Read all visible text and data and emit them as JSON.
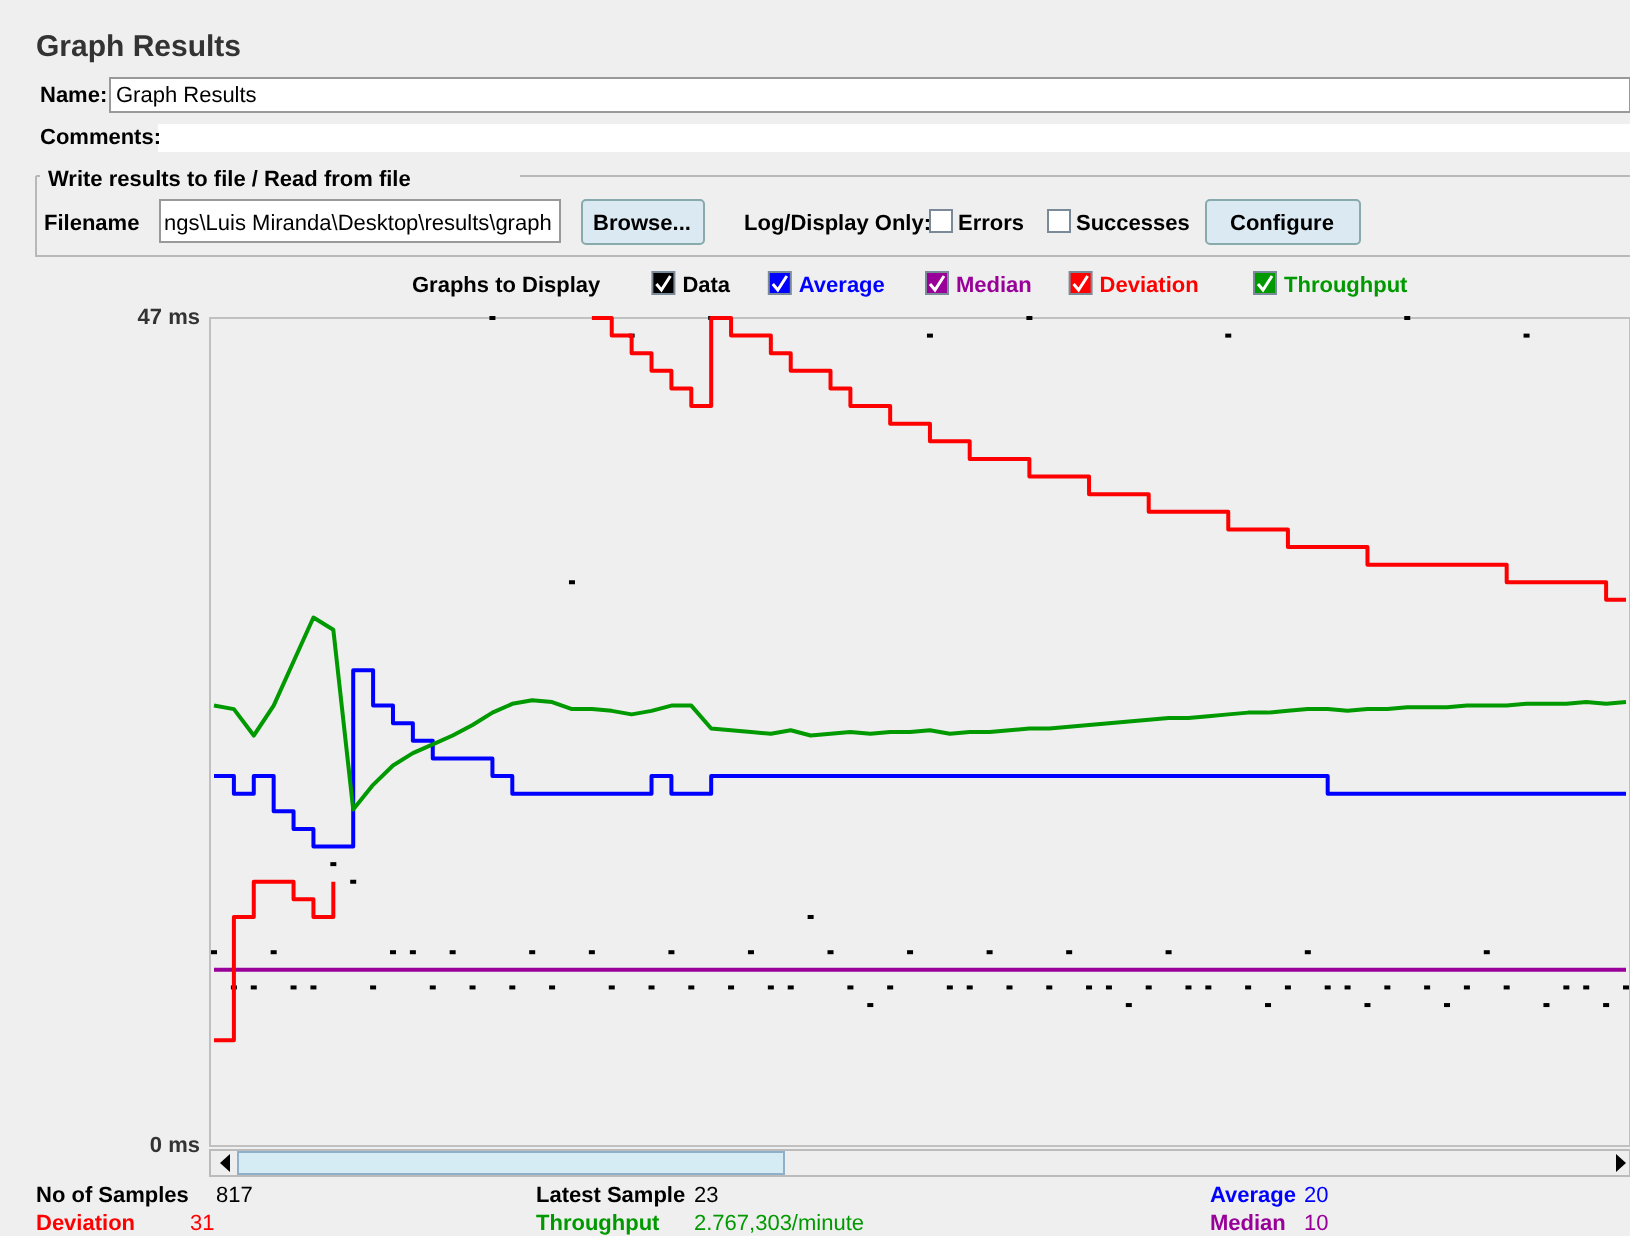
{
  "chart_data": {
    "type": "line",
    "title": "Graph Results",
    "legend_title": "Graphs to Display",
    "legend": "top",
    "tick_labels": "y",
    "grid": false,
    "ylim": [
      0,
      47
    ],
    "yticks": [
      {
        "value": 47,
        "label": "47 ms"
      },
      {
        "value": 0,
        "label": "0 ms"
      }
    ],
    "categories": [
      null,
      null,
      null,
      null,
      null,
      null,
      null,
      null,
      null,
      null,
      null,
      null,
      null,
      null,
      null,
      null,
      null,
      null,
      null,
      null,
      null,
      null,
      null,
      null,
      null,
      null,
      null,
      null,
      null,
      null,
      null,
      null,
      null,
      null,
      null,
      null,
      null,
      null,
      null,
      null,
      null,
      null,
      null,
      null,
      null,
      null,
      null,
      null,
      null,
      null,
      null,
      null,
      null,
      null,
      null,
      null,
      null,
      null,
      null,
      null,
      null,
      null,
      null,
      null,
      null,
      null,
      null,
      null,
      null,
      null,
      null,
      null
    ],
    "series": [
      {
        "name": "Data",
        "type": "scatter",
        "color": "#000000",
        "values": [
          11,
          9,
          9,
          11,
          9,
          9,
          16,
          15,
          9,
          11,
          11,
          9,
          11,
          9,
          47,
          9,
          11,
          9,
          32,
          11,
          9,
          46,
          9,
          11,
          9,
          47,
          9,
          11,
          9,
          9,
          13,
          11,
          9,
          8,
          9,
          11,
          46,
          9,
          9,
          11,
          9,
          47,
          9,
          11,
          9,
          9,
          8,
          9,
          11,
          9,
          9,
          46,
          9,
          8,
          9,
          11,
          9,
          9,
          8,
          9,
          47,
          9,
          8,
          9,
          11,
          9,
          46,
          8,
          9,
          9,
          8,
          9
        ]
      },
      {
        "name": "Average",
        "type": "step",
        "color": "#0000ff",
        "values": [
          21,
          20,
          21,
          19,
          18,
          17,
          17,
          27,
          25,
          24,
          23,
          22,
          22,
          22,
          21,
          20,
          20,
          20,
          20,
          20,
          20,
          20,
          21,
          20,
          20,
          21,
          21,
          21,
          21,
          21,
          21,
          21,
          21,
          21,
          21,
          21,
          21,
          21,
          21,
          21,
          21,
          21,
          21,
          21,
          21,
          21,
          21,
          21,
          21,
          21,
          21,
          21,
          21,
          21,
          21,
          21,
          20,
          20,
          20,
          20,
          20,
          20,
          20,
          20,
          20,
          20,
          20,
          20,
          20,
          20,
          20,
          20
        ]
      },
      {
        "name": "Median",
        "type": "step",
        "color": "#990099",
        "values": [
          10,
          10,
          10,
          10,
          10,
          10,
          10,
          10,
          10,
          10,
          10,
          10,
          10,
          10,
          10,
          10,
          10,
          10,
          10,
          10,
          10,
          10,
          10,
          10,
          10,
          10,
          10,
          10,
          10,
          10,
          10,
          10,
          10,
          10,
          10,
          10,
          10,
          10,
          10,
          10,
          10,
          10,
          10,
          10,
          10,
          10,
          10,
          10,
          10,
          10,
          10,
          10,
          10,
          10,
          10,
          10,
          10,
          10,
          10,
          10,
          10,
          10,
          10,
          10,
          10,
          10,
          10,
          10,
          10,
          10,
          10,
          10
        ]
      },
      {
        "name": "Deviation",
        "type": "step",
        "color": "#ff0000",
        "values": [
          6,
          13,
          15,
          15,
          14,
          13,
          15,
          null,
          null,
          null,
          null,
          null,
          null,
          null,
          null,
          null,
          null,
          null,
          null,
          47,
          46,
          45,
          44,
          43,
          42,
          47,
          46,
          46,
          45,
          44,
          44,
          43,
          42,
          42,
          41,
          41,
          40,
          40,
          39,
          39,
          39,
          38,
          38,
          38,
          37,
          37,
          37,
          36,
          36,
          36,
          36,
          35,
          35,
          35,
          34,
          34,
          34,
          34,
          33,
          33,
          33,
          33,
          33,
          33,
          33,
          32,
          32,
          32,
          32,
          32,
          31,
          31
        ]
      },
      {
        "name": "Throughput",
        "type": "line",
        "color": "#009900",
        "values": [
          25,
          24.8,
          23.3,
          25,
          27.5,
          30,
          29.3,
          19.1,
          20.5,
          21.6,
          22.3,
          22.8,
          23.3,
          23.9,
          24.6,
          25.1,
          25.3,
          25.2,
          24.8,
          24.8,
          24.7,
          24.5,
          24.7,
          25,
          25,
          23.7,
          23.6,
          23.5,
          23.4,
          23.6,
          23.3,
          23.4,
          23.5,
          23.4,
          23.5,
          23.5,
          23.6,
          23.4,
          23.5,
          23.5,
          23.6,
          23.7,
          23.7,
          23.8,
          23.9,
          24,
          24.1,
          24.2,
          24.3,
          24.3,
          24.4,
          24.5,
          24.6,
          24.6,
          24.7,
          24.8,
          24.8,
          24.7,
          24.8,
          24.8,
          24.9,
          24.9,
          24.9,
          25,
          25,
          25,
          25.1,
          25.1,
          25.1,
          25.2,
          25.1,
          25.2
        ]
      }
    ],
    "annotations": [
      "Name:",
      "Graph Results",
      "Comments:",
      "Write results to file / Read from file",
      "Filename",
      "ngs\\Luis Miranda\\Desktop\\results\\graph",
      "Browse...",
      "Log/Display Only:",
      "Errors",
      "Successes",
      "Configure",
      "No of Samples",
      "817",
      "Latest Sample",
      "23",
      "Average",
      "20",
      "Deviation",
      "31",
      "Throughput",
      "2.767,303/minute",
      "Median",
      "10"
    ]
  }
}
